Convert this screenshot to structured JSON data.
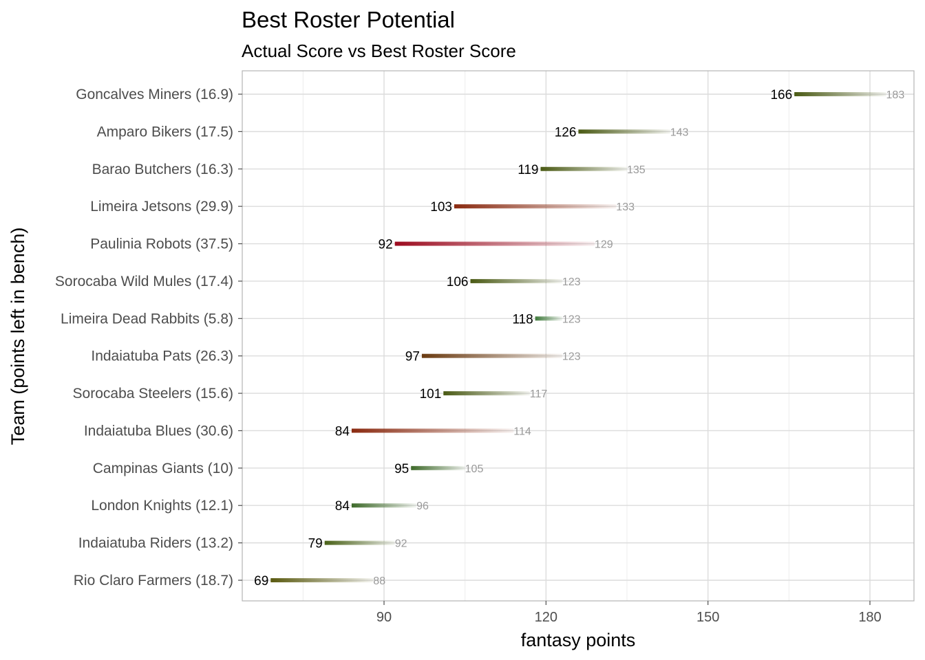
{
  "chart_data": {
    "type": "bar",
    "title": "Best Roster Potential",
    "subtitle": "Actual Score vs Best Roster Score",
    "xlabel": "fantasy points",
    "ylabel": "Team (points left in bench)",
    "xlim": [
      65,
      188
    ],
    "xticks": [
      90,
      120,
      150,
      180
    ],
    "grid": true,
    "legend": "none",
    "rows": [
      {
        "team": "Goncalves Miners (16.9)",
        "actual": 166,
        "best": 183,
        "color": "#4a5a14"
      },
      {
        "team": "Amparo Bikers (17.5)",
        "actual": 126,
        "best": 143,
        "color": "#4a5a14"
      },
      {
        "team": "Barao Butchers (16.3)",
        "actual": 119,
        "best": 135,
        "color": "#4a5a14"
      },
      {
        "team": "Limeira Jetsons (29.9)",
        "actual": 103,
        "best": 133,
        "color": "#8a2a10"
      },
      {
        "team": "Paulinia Robots (37.5)",
        "actual": 92,
        "best": 129,
        "color": "#9c0a1e"
      },
      {
        "team": "Sorocaba Wild Mules (17.4)",
        "actual": 106,
        "best": 123,
        "color": "#4a5a14"
      },
      {
        "team": "Limeira Dead Rabbits (5.8)",
        "actual": 118,
        "best": 123,
        "color": "#3e7a3a"
      },
      {
        "team": "Indaiatuba Pats (26.3)",
        "actual": 97,
        "best": 123,
        "color": "#6a3a10"
      },
      {
        "team": "Sorocaba Steelers (15.6)",
        "actual": 101,
        "best": 117,
        "color": "#4a5a14"
      },
      {
        "team": "Indaiatuba Blues (30.6)",
        "actual": 84,
        "best": 114,
        "color": "#8a2a10"
      },
      {
        "team": "Campinas Giants (10)",
        "actual": 95,
        "best": 105,
        "color": "#3e6a2a"
      },
      {
        "team": "London Knights (12.1)",
        "actual": 84,
        "best": 96,
        "color": "#3e6a2a"
      },
      {
        "team": "Indaiatuba Riders (13.2)",
        "actual": 79,
        "best": 92,
        "color": "#4a6218"
      },
      {
        "team": "Rio Claro Farmers (18.7)",
        "actual": 69,
        "best": 88,
        "color": "#5a5a10"
      }
    ]
  }
}
